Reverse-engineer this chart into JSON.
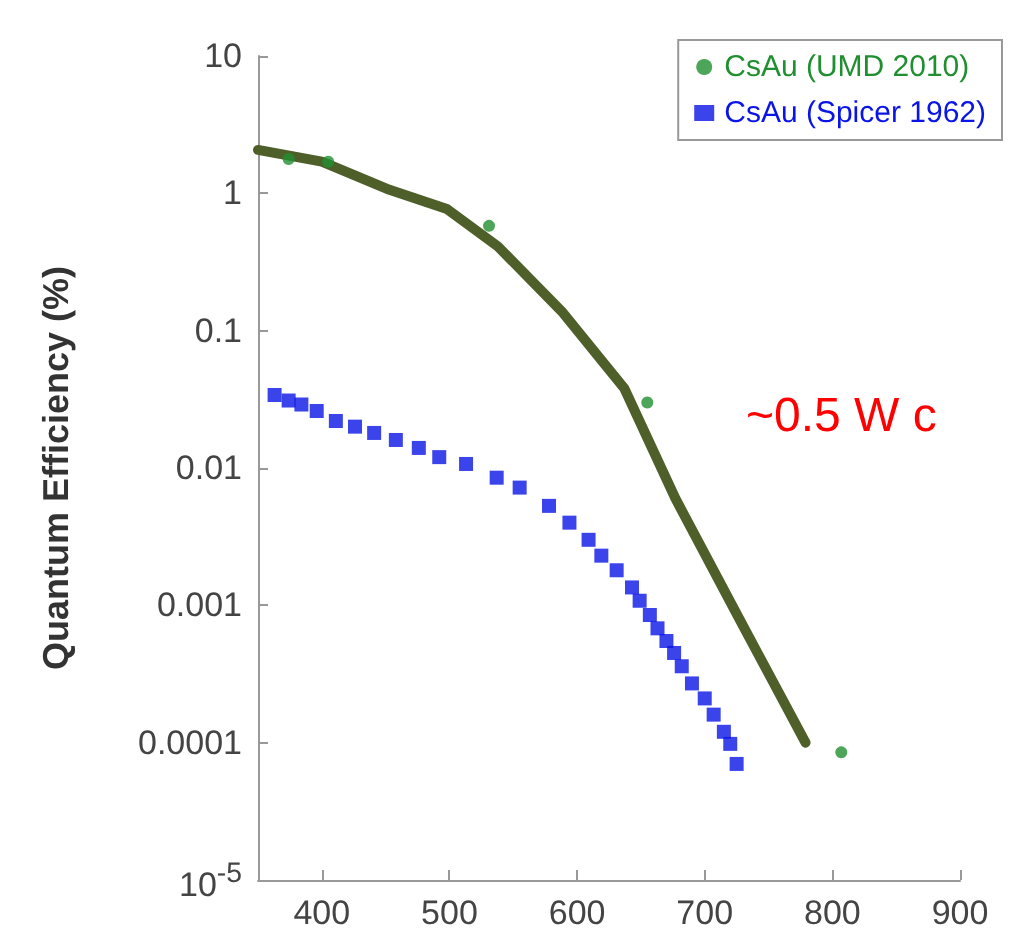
{
  "chart_data": {
    "type": "scatter",
    "ylabel": "Quantum Efficiency (%)",
    "log": "y",
    "xlim": [
      350,
      900
    ],
    "xticks": [
      400,
      500,
      600,
      700,
      800,
      900
    ],
    "ylim": [
      1e-05,
      10
    ],
    "yticks": [
      10,
      1,
      0.1,
      0.01,
      0.001,
      0.0001,
      {
        "value": 1e-05,
        "label": "10$^{-5}$"
      }
    ],
    "grid": false,
    "legend": "top right",
    "annotations": [
      "~0.5 W c"
    ],
    "series": [
      {
        "name": "CsAu (UMD 2010)",
        "color": "#1f8f2f",
        "marker": "circle",
        "x": [
          374,
          405,
          531,
          655,
          807
        ],
        "values": [
          1.78,
          1.7,
          0.58,
          0.03,
          8.5e-05
        ]
      },
      {
        "name": "CsAu (Spicer 1962)",
        "color": "#0a14e6",
        "marker": "square",
        "x": [
          363,
          374,
          384,
          396,
          411,
          426,
          441,
          458,
          476,
          492,
          513,
          537,
          555,
          578,
          594,
          609,
          619,
          631,
          643,
          649,
          657,
          663,
          670,
          676,
          682,
          690,
          700,
          707,
          715,
          720,
          725
        ],
        "values": [
          0.034,
          0.031,
          0.029,
          0.026,
          0.022,
          0.02,
          0.018,
          0.016,
          0.014,
          0.012,
          0.0107,
          0.0085,
          0.0072,
          0.0053,
          0.004,
          0.003,
          0.0023,
          0.0018,
          0.00135,
          0.00108,
          0.00085,
          0.00068,
          0.00055,
          0.00045,
          0.00036,
          0.00027,
          0.00021,
          0.00016,
          0.00012,
          9.8e-05,
          7e-05
        ]
      },
      {
        "type": "line",
        "color": "#4f5f2a",
        "marker": "none",
        "line_style": "solid",
        "x": [
          350,
          400,
          453,
          498,
          538,
          588,
          637,
          677,
          727,
          779
        ],
        "values": [
          2.07,
          1.7,
          1.06,
          0.77,
          0.41,
          0.138,
          0.038,
          0.006,
          0.0008,
          0.0001
        ]
      }
    ]
  }
}
